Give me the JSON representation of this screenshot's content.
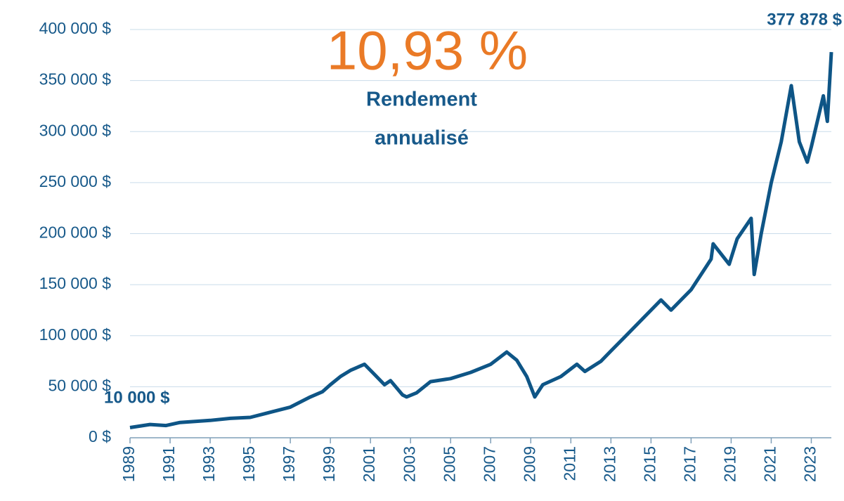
{
  "chart_data": {
    "type": "line",
    "annotations": {
      "rate": "10,93 %",
      "rate_caption": [
        "Rendement",
        "annualisé"
      ],
      "start_label": "10 000 $",
      "end_label": "377 878 $"
    },
    "x": [
      1989.0,
      1990.0,
      1990.8,
      1991.5,
      1993.0,
      1994.0,
      1995.0,
      1996.0,
      1997.0,
      1998.0,
      1998.6,
      1999.0,
      1999.5,
      2000.0,
      2000.7,
      2001.2,
      2001.7,
      2002.0,
      2002.6,
      2002.8,
      2003.3,
      2004.0,
      2005.0,
      2006.0,
      2007.0,
      2007.8,
      2008.3,
      2008.8,
      2009.2,
      2009.6,
      2010.5,
      2011.3,
      2011.7,
      2012.5,
      2013.0,
      2014.0,
      2015.0,
      2015.5,
      2016.0,
      2016.5,
      2017.0,
      2018.0,
      2018.1,
      2018.9,
      2019.3,
      2020.0,
      2020.15,
      2020.5,
      2021.0,
      2021.5,
      2022.0,
      2022.4,
      2022.8,
      2023.0,
      2023.6,
      2023.8,
      2024.0
    ],
    "series": [
      {
        "color": "#0e5586",
        "values": [
          10000,
          13000,
          12000,
          15000,
          17000,
          19000,
          20000,
          25000,
          30000,
          40000,
          45000,
          52000,
          60000,
          66000,
          72000,
          62000,
          52000,
          56000,
          42000,
          40000,
          44000,
          55000,
          58000,
          64000,
          72000,
          84000,
          76000,
          60000,
          40000,
          52000,
          60000,
          72000,
          65000,
          75000,
          85000,
          105000,
          125000,
          135000,
          125000,
          135000,
          145000,
          175000,
          190000,
          170000,
          195000,
          215000,
          160000,
          200000,
          250000,
          290000,
          345000,
          290000,
          270000,
          285000,
          335000,
          310000,
          377878
        ]
      }
    ],
    "xlim": [
      1989,
      2024
    ],
    "xticks": [
      1989,
      1991,
      1993,
      1995,
      1997,
      1999,
      2001,
      2003,
      2005,
      2007,
      2009,
      2011,
      2013,
      2015,
      2017,
      2019,
      2021,
      2023
    ],
    "ylim": [
      0,
      400000
    ],
    "yticks": [
      {
        "value": 0,
        "label": "0 $"
      },
      {
        "value": 50000,
        "label": "50 000 $"
      },
      {
        "value": 100000,
        "label": "100 000 $"
      },
      {
        "value": 150000,
        "label": "150 000 $"
      },
      {
        "value": 200000,
        "label": "200 000 $"
      },
      {
        "value": 250000,
        "label": "250 000 $"
      },
      {
        "value": 300000,
        "label": "300 000 $"
      },
      {
        "value": 350000,
        "label": "350 000 $"
      },
      {
        "value": 400000,
        "label": "400 000 $"
      }
    ],
    "grid": true
  }
}
